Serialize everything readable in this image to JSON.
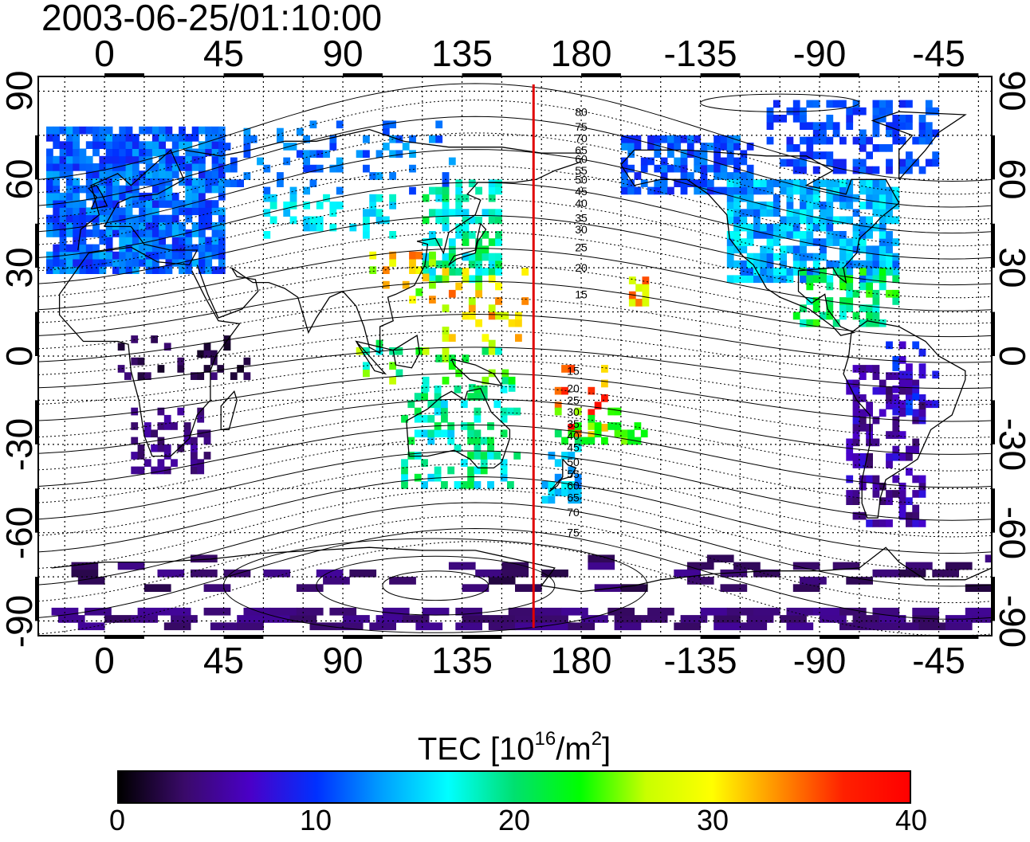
{
  "timestamp": "2003-06-25/01:10:00",
  "map": {
    "projection": "equirectangular",
    "lon_range": [
      -25,
      335
    ],
    "lat_range": [
      -95,
      95
    ],
    "lon_ticks": [
      "0",
      "45",
      "90",
      "135",
      "180",
      "-135",
      "-90",
      "-45"
    ],
    "lon_tick_values": [
      0,
      45,
      90,
      135,
      180,
      225,
      270,
      315
    ],
    "lat_ticks": [
      "90",
      "60",
      "30",
      "0",
      "-30",
      "-60",
      "-90"
    ],
    "lat_tick_values": [
      90,
      60,
      30,
      0,
      -30,
      -60,
      -90
    ],
    "gridlines": "dotted, every 15 degrees",
    "meridian_marker": {
      "lon": 162,
      "color": "#e00000"
    },
    "contour_labels_north": [
      "80",
      "75",
      "70",
      "65",
      "60",
      "55",
      "50",
      "45",
      "40",
      "35",
      "30",
      "25",
      "20",
      "15"
    ],
    "contour_labels_south": [
      "15",
      "20",
      "25",
      "30",
      "35",
      "40",
      "45",
      "50",
      "55",
      "60",
      "65",
      "70",
      "75"
    ]
  },
  "colorbar": {
    "title_main": "TEC  [10",
    "title_exp1": "16",
    "title_mid": "/m",
    "title_exp2": "2",
    "title_end": "]",
    "min": 0,
    "max": 40,
    "ticks": [
      "0",
      "10",
      "20",
      "30",
      "40"
    ],
    "colormap": [
      "#000000",
      "#3a0a6a",
      "#4a00c8",
      "#0030ff",
      "#00a0ff",
      "#00ffff",
      "#00e070",
      "#00ff00",
      "#c8ff00",
      "#ffff00",
      "#ff9000",
      "#ff2000",
      "#ff0000"
    ]
  },
  "tec_regions": [
    {
      "name": "europe",
      "lon": [
        -22,
        45
      ],
      "lat": [
        28,
        78
      ],
      "tec": [
        9,
        14
      ],
      "density": 0.85
    },
    {
      "name": "eurasia-north",
      "lon": [
        45,
        135
      ],
      "lat": [
        55,
        80
      ],
      "tec": [
        10,
        14
      ],
      "density": 0.18
    },
    {
      "name": "central-asia",
      "lon": [
        60,
        110
      ],
      "lat": [
        40,
        55
      ],
      "tec": [
        14,
        18
      ],
      "density": 0.3
    },
    {
      "name": "japan-region",
      "lon": [
        120,
        148
      ],
      "lat": [
        25,
        60
      ],
      "tec": [
        15,
        22
      ],
      "density": 0.55
    },
    {
      "name": "east-china",
      "lon": [
        100,
        125
      ],
      "lat": [
        18,
        35
      ],
      "tec": [
        24,
        36
      ],
      "density": 0.25
    },
    {
      "name": "w-pacific",
      "lon": [
        125,
        160
      ],
      "lat": [
        5,
        30
      ],
      "tec": [
        25,
        35
      ],
      "density": 0.2
    },
    {
      "name": "indonesia",
      "lon": [
        95,
        155
      ],
      "lat": [
        -12,
        5
      ],
      "tec": [
        17,
        27
      ],
      "density": 0.18
    },
    {
      "name": "australia",
      "lon": [
        112,
        155
      ],
      "lat": [
        -45,
        -10
      ],
      "tec": [
        14,
        22
      ],
      "density": 0.38
    },
    {
      "name": "new-zealand",
      "lon": [
        165,
        180
      ],
      "lat": [
        -50,
        -30
      ],
      "tec": [
        12,
        17
      ],
      "density": 0.5
    },
    {
      "name": "sw-pacific",
      "lon": [
        170,
        190
      ],
      "lat": [
        -28,
        -5
      ],
      "tec": [
        30,
        40
      ],
      "density": 0.25
    },
    {
      "name": "sw-pacific-green",
      "lon": [
        170,
        205
      ],
      "lat": [
        -30,
        -18
      ],
      "tec": [
        20,
        26
      ],
      "density": 0.3
    },
    {
      "name": "hawaii",
      "lon": [
        198,
        205
      ],
      "lat": [
        17,
        25
      ],
      "tec": [
        27,
        36
      ],
      "density": 0.7
    },
    {
      "name": "alaska",
      "lon": [
        195,
        245
      ],
      "lat": [
        55,
        75
      ],
      "tec": [
        9,
        13
      ],
      "density": 0.65
    },
    {
      "name": "north-america",
      "lon": [
        235,
        300
      ],
      "lat": [
        25,
        60
      ],
      "tec": [
        11,
        17
      ],
      "density": 0.8
    },
    {
      "name": "arctic-canada",
      "lon": [
        250,
        315
      ],
      "lat": [
        62,
        85
      ],
      "tec": [
        9,
        12
      ],
      "density": 0.45
    },
    {
      "name": "mexico-caribbean",
      "lon": [
        260,
        300
      ],
      "lat": [
        10,
        28
      ],
      "tec": [
        17,
        25
      ],
      "density": 0.4
    },
    {
      "name": "africa-equator",
      "lon": [
        5,
        55
      ],
      "lat": [
        -8,
        5
      ],
      "tec": [
        1,
        4
      ],
      "density": 0.3
    },
    {
      "name": "south-africa",
      "lon": [
        10,
        40
      ],
      "lat": [
        -40,
        -18
      ],
      "tec": [
        3,
        6
      ],
      "density": 0.45
    },
    {
      "name": "south-america",
      "lon": [
        280,
        310
      ],
      "lat": [
        -58,
        -5
      ],
      "tec": [
        3,
        8
      ],
      "density": 0.45
    },
    {
      "name": "s-america-north",
      "lon": [
        295,
        315
      ],
      "lat": [
        -20,
        5
      ],
      "tec": [
        6,
        11
      ],
      "density": 0.3
    },
    {
      "name": "antarctica-ring",
      "lon": [
        -20,
        335
      ],
      "lat": [
        -80,
        -68
      ],
      "tec": [
        2,
        5
      ],
      "density": 0.08
    },
    {
      "name": "south-pole-band",
      "lon": [
        -20,
        335
      ],
      "lat": [
        -93,
        -86
      ],
      "tec": [
        3,
        5
      ],
      "density": 0.3
    }
  ]
}
